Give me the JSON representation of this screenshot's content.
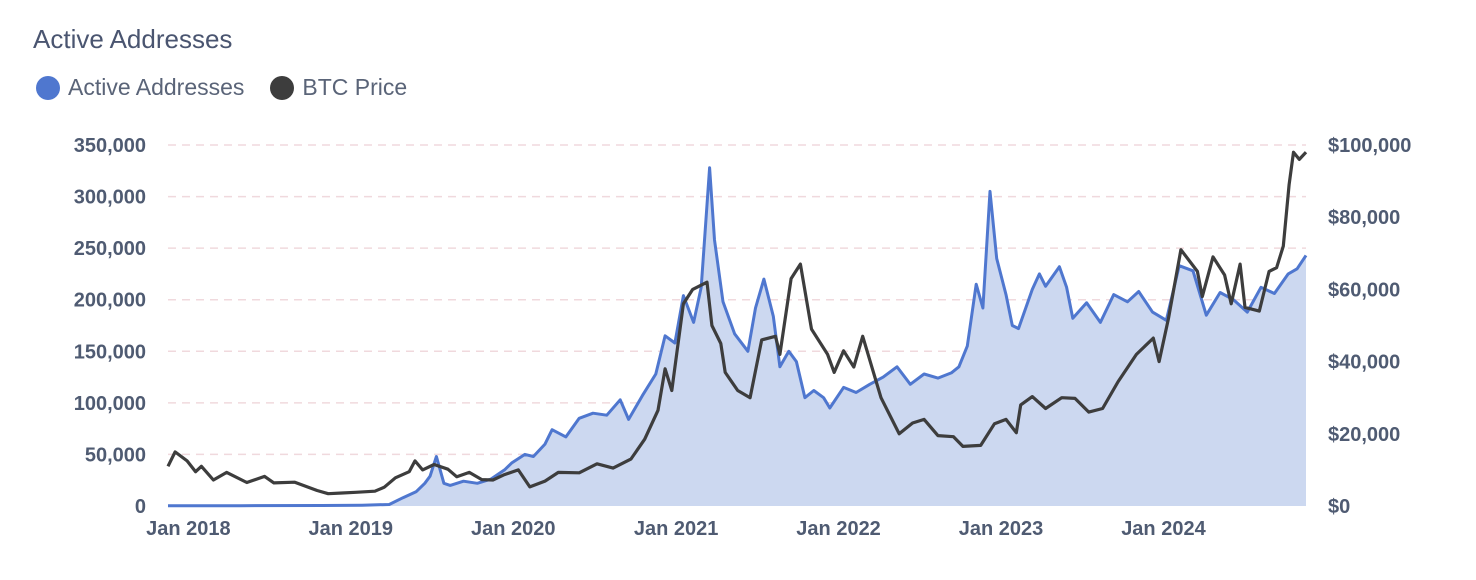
{
  "title": "Active Addresses",
  "legend": [
    {
      "label": "Active Addresses",
      "color": "#4f77cf"
    },
    {
      "label": "BTC Price",
      "color": "#3d3d3d"
    }
  ],
  "colors": {
    "area_fill": "#ccd8f0",
    "grid": "#f0d9dd",
    "tick_text": "#4f5b72"
  },
  "chart_data": {
    "type": "area",
    "x_axis": {
      "range": [
        "2017-12-20",
        "2024-12-20"
      ],
      "ticks": [
        [
          "2018-01-01",
          "Jan 2018"
        ],
        [
          "2019-01-01",
          "Jan 2019"
        ],
        [
          "2020-01-01",
          "Jan 2020"
        ],
        [
          "2021-01-01",
          "Jan 2021"
        ],
        [
          "2022-01-01",
          "Jan 2022"
        ],
        [
          "2023-01-01",
          "Jan 2023"
        ],
        [
          "2024-01-01",
          "Jan 2024"
        ]
      ]
    },
    "y_left": {
      "range": [
        0,
        350000
      ],
      "ticks": [
        "0",
        "50,000",
        "100,000",
        "150,000",
        "200,000",
        "250,000",
        "300,000",
        "350,000"
      ]
    },
    "y_right": {
      "range": [
        0,
        100000
      ],
      "ticks": [
        "$0",
        "$20,000",
        "$40,000",
        "$60,000",
        "$80,000",
        "$100,000"
      ]
    },
    "grid": true,
    "series": [
      {
        "name": "Active Addresses",
        "axis": "left",
        "kind": "area",
        "points": [
          [
            "2017-12-20",
            200
          ],
          [
            "2018-06-01",
            300
          ],
          [
            "2018-12-01",
            500
          ],
          [
            "2019-03-01",
            800
          ],
          [
            "2019-05-01",
            1500
          ],
          [
            "2019-06-01",
            8000
          ],
          [
            "2019-07-01",
            14000
          ],
          [
            "2019-07-20",
            22000
          ],
          [
            "2019-08-01",
            29000
          ],
          [
            "2019-08-15",
            48000
          ],
          [
            "2019-09-01",
            22000
          ],
          [
            "2019-09-15",
            20000
          ],
          [
            "2019-10-15",
            24000
          ],
          [
            "2019-11-15",
            22000
          ],
          [
            "2019-12-15",
            26000
          ],
          [
            "2020-01-15",
            35000
          ],
          [
            "2020-02-01",
            42000
          ],
          [
            "2020-03-01",
            50000
          ],
          [
            "2020-03-20",
            48000
          ],
          [
            "2020-04-15",
            60000
          ],
          [
            "2020-05-01",
            74000
          ],
          [
            "2020-06-01",
            67000
          ],
          [
            "2020-07-01",
            85000
          ],
          [
            "2020-08-01",
            90000
          ],
          [
            "2020-09-01",
            88000
          ],
          [
            "2020-10-01",
            103000
          ],
          [
            "2020-10-20",
            84000
          ],
          [
            "2020-11-20",
            107000
          ],
          [
            "2020-12-20",
            128000
          ],
          [
            "2021-01-10",
            165000
          ],
          [
            "2021-02-01",
            158000
          ],
          [
            "2021-02-20",
            204000
          ],
          [
            "2021-03-15",
            178000
          ],
          [
            "2021-04-01",
            212000
          ],
          [
            "2021-04-20",
            328000
          ],
          [
            "2021-05-01",
            258000
          ],
          [
            "2021-05-20",
            198000
          ],
          [
            "2021-06-15",
            167000
          ],
          [
            "2021-07-15",
            150000
          ],
          [
            "2021-08-01",
            192000
          ],
          [
            "2021-08-20",
            220000
          ],
          [
            "2021-09-10",
            184000
          ],
          [
            "2021-09-25",
            135000
          ],
          [
            "2021-10-15",
            150000
          ],
          [
            "2021-11-01",
            140000
          ],
          [
            "2021-11-20",
            105000
          ],
          [
            "2021-12-10",
            112000
          ],
          [
            "2022-01-01",
            105000
          ],
          [
            "2022-01-15",
            95000
          ],
          [
            "2022-02-15",
            115000
          ],
          [
            "2022-03-15",
            110000
          ],
          [
            "2022-04-15",
            118000
          ],
          [
            "2022-05-15",
            125000
          ],
          [
            "2022-06-15",
            135000
          ],
          [
            "2022-07-15",
            118000
          ],
          [
            "2022-08-15",
            128000
          ],
          [
            "2022-09-15",
            124000
          ],
          [
            "2022-10-15",
            129000
          ],
          [
            "2022-11-01",
            135000
          ],
          [
            "2022-11-20",
            155000
          ],
          [
            "2022-12-10",
            215000
          ],
          [
            "2022-12-25",
            192000
          ],
          [
            "2023-01-10",
            305000
          ],
          [
            "2023-01-25",
            240000
          ],
          [
            "2023-02-15",
            205000
          ],
          [
            "2023-03-01",
            175000
          ],
          [
            "2023-03-15",
            172000
          ],
          [
            "2023-04-15",
            210000
          ],
          [
            "2023-05-01",
            225000
          ],
          [
            "2023-05-15",
            213000
          ],
          [
            "2023-06-15",
            232000
          ],
          [
            "2023-07-01",
            212000
          ],
          [
            "2023-07-15",
            182000
          ],
          [
            "2023-08-15",
            197000
          ],
          [
            "2023-09-15",
            178000
          ],
          [
            "2023-10-15",
            205000
          ],
          [
            "2023-11-15",
            198000
          ],
          [
            "2023-12-10",
            208000
          ],
          [
            "2024-01-10",
            188000
          ],
          [
            "2024-02-10",
            180000
          ],
          [
            "2024-03-10",
            233000
          ],
          [
            "2024-04-10",
            228000
          ],
          [
            "2024-05-10",
            185000
          ],
          [
            "2024-06-10",
            207000
          ],
          [
            "2024-07-10",
            200000
          ],
          [
            "2024-08-10",
            188000
          ],
          [
            "2024-09-10",
            212000
          ],
          [
            "2024-10-10",
            206000
          ],
          [
            "2024-11-10",
            225000
          ],
          [
            "2024-11-30",
            230000
          ],
          [
            "2024-12-20",
            243000
          ]
        ]
      },
      {
        "name": "BTC Price",
        "axis": "right",
        "kind": "line",
        "points": [
          [
            "2017-12-20",
            11000
          ],
          [
            "2018-01-05",
            15000
          ],
          [
            "2018-02-01",
            12500
          ],
          [
            "2018-02-20",
            9500
          ],
          [
            "2018-03-05",
            11000
          ],
          [
            "2018-04-01",
            7200
          ],
          [
            "2018-05-01",
            9300
          ],
          [
            "2018-06-15",
            6500
          ],
          [
            "2018-07-25",
            8200
          ],
          [
            "2018-08-15",
            6400
          ],
          [
            "2018-10-01",
            6600
          ],
          [
            "2018-11-20",
            4300
          ],
          [
            "2018-12-15",
            3400
          ],
          [
            "2019-01-15",
            3600
          ],
          [
            "2019-02-15",
            3800
          ],
          [
            "2019-03-30",
            4100
          ],
          [
            "2019-04-20",
            5200
          ],
          [
            "2019-05-15",
            7800
          ],
          [
            "2019-06-15",
            9500
          ],
          [
            "2019-06-28",
            12500
          ],
          [
            "2019-07-15",
            10000
          ],
          [
            "2019-08-10",
            11500
          ],
          [
            "2019-09-10",
            10200
          ],
          [
            "2019-09-30",
            8100
          ],
          [
            "2019-10-28",
            9300
          ],
          [
            "2019-11-25",
            7300
          ],
          [
            "2019-12-20",
            7200
          ],
          [
            "2020-01-15",
            8700
          ],
          [
            "2020-02-15",
            10000
          ],
          [
            "2020-03-12",
            5300
          ],
          [
            "2020-04-15",
            6900
          ],
          [
            "2020-05-15",
            9300
          ],
          [
            "2020-07-01",
            9200
          ],
          [
            "2020-08-10",
            11700
          ],
          [
            "2020-09-15",
            10500
          ],
          [
            "2020-10-25",
            13000
          ],
          [
            "2020-11-25",
            18500
          ],
          [
            "2020-12-25",
            26500
          ],
          [
            "2021-01-10",
            38000
          ],
          [
            "2021-01-25",
            32000
          ],
          [
            "2021-02-20",
            56000
          ],
          [
            "2021-03-13",
            60000
          ],
          [
            "2021-04-14",
            62000
          ],
          [
            "2021-04-25",
            50000
          ],
          [
            "2021-05-15",
            45000
          ],
          [
            "2021-05-25",
            37000
          ],
          [
            "2021-06-22",
            32000
          ],
          [
            "2021-07-20",
            30000
          ],
          [
            "2021-08-15",
            46000
          ],
          [
            "2021-09-15",
            47000
          ],
          [
            "2021-09-25",
            42000
          ],
          [
            "2021-10-20",
            63000
          ],
          [
            "2021-11-10",
            67000
          ],
          [
            "2021-12-05",
            49000
          ],
          [
            "2022-01-10",
            42000
          ],
          [
            "2022-01-25",
            37000
          ],
          [
            "2022-02-15",
            43000
          ],
          [
            "2022-03-10",
            38500
          ],
          [
            "2022-03-30",
            47000
          ],
          [
            "2022-05-10",
            30000
          ],
          [
            "2022-06-20",
            20000
          ],
          [
            "2022-07-20",
            23000
          ],
          [
            "2022-08-15",
            24000
          ],
          [
            "2022-09-15",
            19500
          ],
          [
            "2022-10-20",
            19200
          ],
          [
            "2022-11-10",
            16500
          ],
          [
            "2022-12-20",
            16800
          ],
          [
            "2023-01-20",
            22800
          ],
          [
            "2023-02-15",
            24000
          ],
          [
            "2023-03-10",
            20300
          ],
          [
            "2023-03-20",
            28000
          ],
          [
            "2023-04-15",
            30300
          ],
          [
            "2023-05-15",
            27000
          ],
          [
            "2023-06-20",
            30000
          ],
          [
            "2023-07-20",
            29800
          ],
          [
            "2023-08-20",
            26000
          ],
          [
            "2023-09-20",
            27000
          ],
          [
            "2023-10-25",
            34500
          ],
          [
            "2023-12-05",
            42000
          ],
          [
            "2024-01-12",
            46500
          ],
          [
            "2024-01-25",
            40000
          ],
          [
            "2024-02-15",
            52000
          ],
          [
            "2024-03-14",
            71000
          ],
          [
            "2024-04-20",
            65000
          ],
          [
            "2024-05-01",
            58000
          ],
          [
            "2024-05-25",
            69000
          ],
          [
            "2024-06-20",
            64000
          ],
          [
            "2024-07-05",
            56000
          ],
          [
            "2024-07-25",
            67000
          ],
          [
            "2024-08-05",
            55000
          ],
          [
            "2024-09-06",
            54000
          ],
          [
            "2024-09-28",
            65000
          ],
          [
            "2024-10-15",
            66000
          ],
          [
            "2024-10-30",
            72000
          ],
          [
            "2024-11-12",
            89000
          ],
          [
            "2024-11-22",
            98000
          ],
          [
            "2024-12-05",
            96000
          ],
          [
            "2024-12-20",
            98000
          ]
        ]
      }
    ]
  }
}
